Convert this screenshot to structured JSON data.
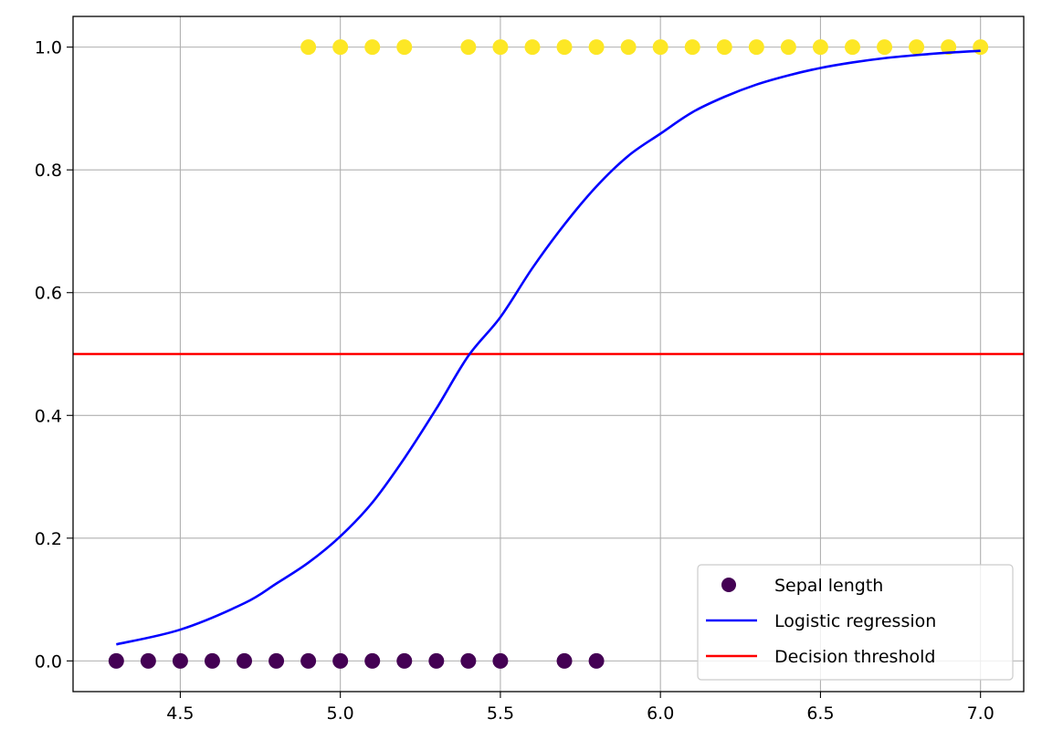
{
  "chart_data": {
    "type": "scatter",
    "title": "",
    "xlabel": "",
    "ylabel": "",
    "xlim": [
      4.165,
      7.135
    ],
    "ylim": [
      -0.05,
      1.05
    ],
    "xticks": [
      4.5,
      5.0,
      5.5,
      6.0,
      6.5,
      7.0
    ],
    "xtick_labels": [
      "4.5",
      "5.0",
      "5.5",
      "6.0",
      "6.5",
      "7.0"
    ],
    "yticks": [
      0.0,
      0.2,
      0.4,
      0.6,
      0.8,
      1.0
    ],
    "ytick_labels": [
      "0.0",
      "0.2",
      "0.4",
      "0.6",
      "0.8",
      "1.0"
    ],
    "grid": true,
    "legend_position": "lower-right",
    "series": [
      {
        "name": "Sepal length",
        "kind": "scatter",
        "colors_by_class": {
          "0": "#440154",
          "1": "#fde725"
        },
        "points": [
          {
            "x": 4.3,
            "y": 0
          },
          {
            "x": 4.4,
            "y": 0
          },
          {
            "x": 4.5,
            "y": 0
          },
          {
            "x": 4.6,
            "y": 0
          },
          {
            "x": 4.7,
            "y": 0
          },
          {
            "x": 4.8,
            "y": 0
          },
          {
            "x": 4.9,
            "y": 0
          },
          {
            "x": 5.0,
            "y": 0
          },
          {
            "x": 5.1,
            "y": 0
          },
          {
            "x": 5.2,
            "y": 0
          },
          {
            "x": 5.3,
            "y": 0
          },
          {
            "x": 5.4,
            "y": 0
          },
          {
            "x": 5.5,
            "y": 0
          },
          {
            "x": 5.7,
            "y": 0
          },
          {
            "x": 5.8,
            "y": 0
          },
          {
            "x": 4.9,
            "y": 1
          },
          {
            "x": 5.0,
            "y": 1
          },
          {
            "x": 5.1,
            "y": 1
          },
          {
            "x": 5.2,
            "y": 1
          },
          {
            "x": 5.4,
            "y": 1
          },
          {
            "x": 5.5,
            "y": 1
          },
          {
            "x": 5.6,
            "y": 1
          },
          {
            "x": 5.7,
            "y": 1
          },
          {
            "x": 5.8,
            "y": 1
          },
          {
            "x": 5.9,
            "y": 1
          },
          {
            "x": 6.0,
            "y": 1
          },
          {
            "x": 6.1,
            "y": 1
          },
          {
            "x": 6.2,
            "y": 1
          },
          {
            "x": 6.3,
            "y": 1
          },
          {
            "x": 6.4,
            "y": 1
          },
          {
            "x": 6.5,
            "y": 1
          },
          {
            "x": 6.6,
            "y": 1
          },
          {
            "x": 6.7,
            "y": 1
          },
          {
            "x": 6.8,
            "y": 1
          },
          {
            "x": 6.9,
            "y": 1
          },
          {
            "x": 7.0,
            "y": 1
          }
        ]
      },
      {
        "name": "Logistic regression",
        "kind": "line",
        "color": "#0000ff",
        "x": [
          4.3,
          4.5,
          4.7,
          4.8,
          4.9,
          5.0,
          5.1,
          5.2,
          5.3,
          5.4,
          5.5,
          5.6,
          5.7,
          5.8,
          5.9,
          6.0,
          6.1,
          6.2,
          6.3,
          6.4,
          6.5,
          6.6,
          6.7,
          6.8,
          6.9,
          7.0
        ],
        "y": [
          0.027,
          0.051,
          0.094,
          0.126,
          0.16,
          0.203,
          0.258,
          0.33,
          0.411,
          0.497,
          0.56,
          0.64,
          0.711,
          0.773,
          0.823,
          0.859,
          0.894,
          0.919,
          0.939,
          0.954,
          0.966,
          0.975,
          0.982,
          0.987,
          0.991,
          0.994
        ]
      },
      {
        "name": "Decision threshold",
        "kind": "hline",
        "color": "#ff0000",
        "y": 0.5
      }
    ]
  }
}
